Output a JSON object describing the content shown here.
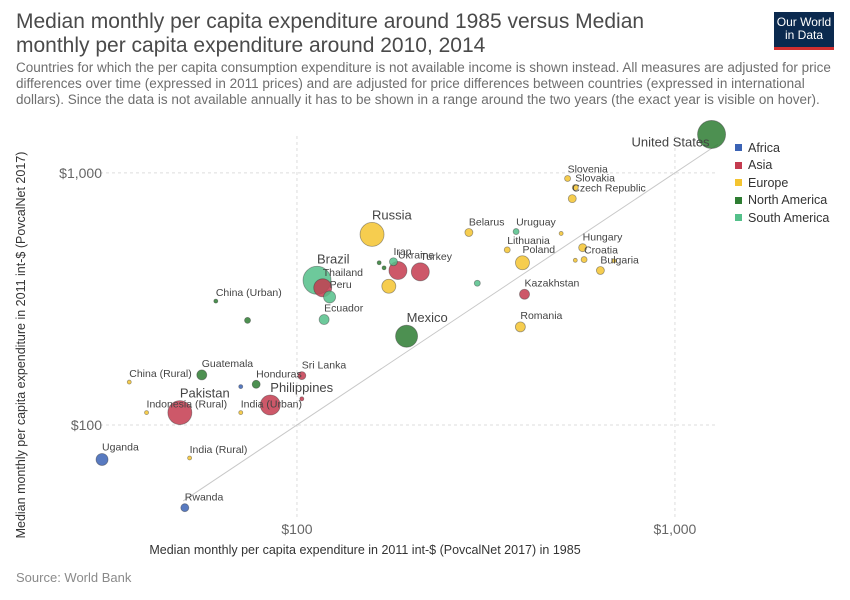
{
  "header": {
    "title": "Median monthly per capita expenditure around 1985 versus Median monthly per capita expenditure around 2010, 2014",
    "subtitle": "Countries for which the per capita consumption expenditure is not available income is shown instead. All measures are adjusted for price differences over time (expressed in 2011 prices) and are adjusted for price differences between countries (expressed in international dollars). Since the data is not available annually it has to be shown in a range around the two years (the exact year is visible on hover).",
    "logo": "Our World in Data",
    "logo_colors": {
      "background": "#0b2a4f",
      "stripe": "#d32f2f"
    }
  },
  "footer": {
    "source": "Source: World Bank"
  },
  "chart_data": {
    "type": "scatter",
    "title": "Median monthly per capita expenditure around 1985 versus Median monthly per capita expenditure around 2010, 2014",
    "xlabel": "Median monthly per capita expenditure in 2011 int-$ (PovcalNet 2017) in 1985",
    "ylabel": "Median monthly per capita expenditure in 2011 int-$ (PovcalNet 2017)",
    "x_scale": "log",
    "y_scale": "log",
    "xlim": [
      28,
      1300
    ],
    "ylim": [
      42,
      1400
    ],
    "x_ticks": [
      {
        "value": 100,
        "label": "$100"
      },
      {
        "value": 1000,
        "label": "$1,000"
      }
    ],
    "y_ticks": [
      {
        "value": 100,
        "label": "$100"
      },
      {
        "value": 1000,
        "label": "$1,000"
      }
    ],
    "grid": true,
    "reference_line": "y = x",
    "legend_position": "right",
    "series": [
      {
        "name": "Africa",
        "color": "#3b63b5"
      },
      {
        "name": "Asia",
        "color": "#c43b4f"
      },
      {
        "name": "Europe",
        "color": "#f4c430"
      },
      {
        "name": "North America",
        "color": "#2e7d32"
      },
      {
        "name": "South America",
        "color": "#54c08a"
      }
    ],
    "points": [
      {
        "label": "United States",
        "region": "North America",
        "x": 1250,
        "y": 1420,
        "size": 14
      },
      {
        "label": "Slovenia",
        "region": "Europe",
        "x": 520,
        "y": 950,
        "size": 3
      },
      {
        "label": "Slovakia",
        "region": "Europe",
        "x": 545,
        "y": 875,
        "size": 3
      },
      {
        "label": "Czech Republic",
        "region": "Europe",
        "x": 535,
        "y": 790,
        "size": 4
      },
      {
        "label": "Russia",
        "region": "Europe",
        "x": 158,
        "y": 570,
        "size": 12
      },
      {
        "label": "Belarus",
        "region": "Europe",
        "x": 285,
        "y": 580,
        "size": 4
      },
      {
        "label": "Uruguay",
        "region": "South America",
        "x": 380,
        "y": 585,
        "size": 3
      },
      {
        "label": "",
        "region": "Europe",
        "x": 500,
        "y": 575,
        "size": 2
      },
      {
        "label": "Hungary",
        "region": "Europe",
        "x": 570,
        "y": 505,
        "size": 4
      },
      {
        "label": "Lithuania",
        "region": "Europe",
        "x": 360,
        "y": 495,
        "size": 3
      },
      {
        "label": "Croatia",
        "region": "Europe",
        "x": 575,
        "y": 453,
        "size": 3
      },
      {
        "label": "",
        "region": "Europe",
        "x": 545,
        "y": 450,
        "size": 2
      },
      {
        "label": "Poland",
        "region": "Europe",
        "x": 395,
        "y": 440,
        "size": 7
      },
      {
        "label": "Bulgaria",
        "region": "Europe",
        "x": 635,
        "y": 410,
        "size": 4
      },
      {
        "label": "",
        "region": "Europe",
        "x": 690,
        "y": 448,
        "size": 2
      },
      {
        "label": "Iran",
        "region": "South America",
        "x": 180,
        "y": 444,
        "size": 4
      },
      {
        "label": "",
        "region": "North America",
        "x": 165,
        "y": 440,
        "size": 2
      },
      {
        "label": "",
        "region": "North America",
        "x": 170,
        "y": 420,
        "size": 2
      },
      {
        "label": "Turkey",
        "region": "Asia",
        "x": 212,
        "y": 405,
        "size": 9
      },
      {
        "label": "Ukraine",
        "region": "Asia",
        "x": 185,
        "y": 410,
        "size": 9
      },
      {
        "label": "Brazil",
        "region": "South America",
        "x": 113,
        "y": 375,
        "size": 14
      },
      {
        "label": "Thailand",
        "region": "Asia",
        "x": 117,
        "y": 350,
        "size": 9
      },
      {
        "label": "Peru",
        "region": "South America",
        "x": 122,
        "y": 322,
        "size": 6
      },
      {
        "label": "",
        "region": "Europe",
        "x": 175,
        "y": 355,
        "size": 7
      },
      {
        "label": "",
        "region": "South America",
        "x": 300,
        "y": 365,
        "size": 3
      },
      {
        "label": "Kazakhstan",
        "region": "Asia",
        "x": 400,
        "y": 330,
        "size": 5
      },
      {
        "label": "China (Urban)",
        "region": "North America",
        "x": 61,
        "y": 310,
        "size": 2
      },
      {
        "label": "",
        "region": "North America",
        "x": 74,
        "y": 260,
        "size": 3
      },
      {
        "label": "Ecuador",
        "region": "South America",
        "x": 118,
        "y": 262,
        "size": 5
      },
      {
        "label": "Romania",
        "region": "Europe",
        "x": 390,
        "y": 245,
        "size": 5
      },
      {
        "label": "Mexico",
        "region": "North America",
        "x": 195,
        "y": 225,
        "size": 11
      },
      {
        "label": "Guatemala",
        "region": "North America",
        "x": 56,
        "y": 158,
        "size": 5
      },
      {
        "label": "China (Rural)",
        "region": "Europe",
        "x": 36,
        "y": 148,
        "size": 2
      },
      {
        "label": "Sri Lanka",
        "region": "Asia",
        "x": 103,
        "y": 157,
        "size": 4
      },
      {
        "label": "Honduras",
        "region": "North America",
        "x": 78,
        "y": 145,
        "size": 4
      },
      {
        "label": "",
        "region": "Africa",
        "x": 71,
        "y": 142,
        "size": 2
      },
      {
        "label": "Philippines",
        "region": "Asia",
        "x": 85,
        "y": 120,
        "size": 10
      },
      {
        "label": "",
        "region": "Asia",
        "x": 103,
        "y": 127,
        "size": 2
      },
      {
        "label": "Pakistan",
        "region": "Asia",
        "x": 49,
        "y": 112,
        "size": 12
      },
      {
        "label": "Indonesia (Rural)",
        "region": "Europe",
        "x": 40,
        "y": 112,
        "size": 2
      },
      {
        "label": "India (Urban)",
        "region": "Europe",
        "x": 71,
        "y": 112,
        "size": 2
      },
      {
        "label": "Uganda",
        "region": "Africa",
        "x": 30.5,
        "y": 73,
        "size": 6
      },
      {
        "label": "India (Rural)",
        "region": "Europe",
        "x": 52,
        "y": 74,
        "size": 2
      },
      {
        "label": "Rwanda",
        "region": "Africa",
        "x": 50.5,
        "y": 47,
        "size": 4
      }
    ]
  }
}
